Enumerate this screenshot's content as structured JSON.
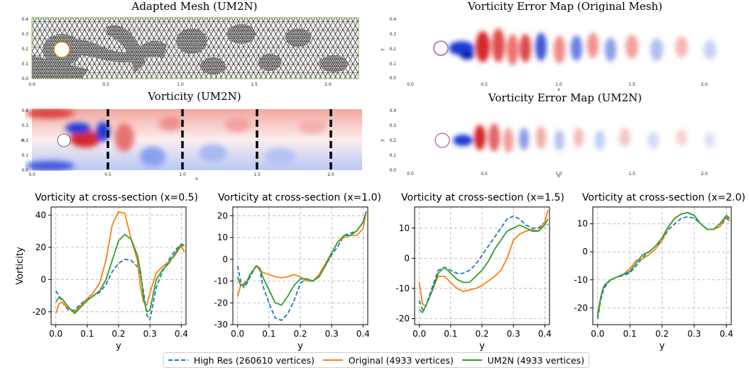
{
  "panels": {
    "mesh_title": "Adapted Mesh (UM2N)",
    "vort_title": "Vorticity (UM2N)",
    "err_orig_title": "Vorticity Error Map (Original Mesh)",
    "err_um2n_title": "Vorticity Error Map (UM2N)",
    "field_xlabel": "x",
    "field_ylabel": "y",
    "field_xticks": [
      "0.0",
      "0.5",
      "1.0",
      "1.5",
      "2.0"
    ],
    "field_yticks": [
      "0.0",
      "0.1",
      "0.2",
      "0.3",
      "0.4"
    ]
  },
  "colors": {
    "high_res": "#1f77b4",
    "original": "#ff7f0e",
    "um2n": "#2ca02c",
    "vort_pos": "#d62728",
    "vort_neg": "#1f3bd6"
  },
  "legend": {
    "high_res": "High Res (260610 vertices)",
    "original": "Original (4933 vertices)",
    "um2n": "UM2N (4933 vertices)"
  },
  "chart_data": [
    {
      "type": "line",
      "title": "Vorticity at cross-section (x=0.5)",
      "xlabel": "y",
      "ylabel": "Vorticity",
      "xlim": [
        -0.015,
        0.415
      ],
      "ylim": [
        -28,
        45
      ],
      "xticks": [
        "0.0",
        "0.1",
        "0.2",
        "0.3",
        "0.4"
      ],
      "yticks": [
        -20,
        0,
        20,
        40
      ],
      "grid": true,
      "series": [
        {
          "name": "High Res (260610 vertices)",
          "x": [
            0.0,
            0.01,
            0.02,
            0.04,
            0.06,
            0.08,
            0.1,
            0.12,
            0.14,
            0.16,
            0.18,
            0.2,
            0.22,
            0.24,
            0.26,
            0.27,
            0.28,
            0.29,
            0.3,
            0.32,
            0.34,
            0.36,
            0.38,
            0.4,
            0.41
          ],
          "y": [
            -7,
            -10,
            -14,
            -19,
            -19,
            -15,
            -12,
            -10,
            -8,
            -3,
            5,
            10,
            12.5,
            12,
            8,
            3,
            -8,
            -22,
            -25,
            -5,
            5,
            12,
            18,
            22,
            20
          ]
        },
        {
          "name": "Original (4933 vertices)",
          "x": [
            0.0,
            0.01,
            0.02,
            0.04,
            0.06,
            0.08,
            0.1,
            0.12,
            0.14,
            0.16,
            0.18,
            0.2,
            0.22,
            0.24,
            0.26,
            0.27,
            0.28,
            0.29,
            0.3,
            0.32,
            0.34,
            0.36,
            0.38,
            0.4,
            0.41
          ],
          "y": [
            -21,
            -15,
            -14,
            -18,
            -20,
            -16,
            -12,
            -8,
            -2,
            12,
            34,
            42,
            41,
            25,
            12,
            -5,
            -14,
            -16,
            -8,
            4,
            8,
            11,
            15,
            21,
            17
          ]
        },
        {
          "name": "UM2N (4933 vertices)",
          "x": [
            0.0,
            0.01,
            0.02,
            0.04,
            0.06,
            0.08,
            0.1,
            0.12,
            0.14,
            0.16,
            0.18,
            0.2,
            0.22,
            0.24,
            0.26,
            0.27,
            0.28,
            0.29,
            0.3,
            0.32,
            0.34,
            0.36,
            0.38,
            0.4,
            0.41
          ],
          "y": [
            -14,
            -11,
            -12,
            -17,
            -21,
            -17,
            -13,
            -10,
            -7,
            0,
            12,
            24,
            28,
            25,
            15,
            5,
            -12,
            -20,
            -19,
            0,
            6,
            10,
            16,
            22,
            21
          ]
        }
      ]
    },
    {
      "type": "line",
      "title": "Vorticity at cross-section (x=1.0)",
      "xlabel": "y",
      "ylabel": "",
      "xlim": [
        -0.015,
        0.415
      ],
      "ylim": [
        -30,
        24
      ],
      "xticks": [
        "0.0",
        "0.1",
        "0.2",
        "0.3",
        "0.4"
      ],
      "yticks": [
        -30,
        -20,
        -10,
        0,
        10,
        20
      ],
      "grid": true,
      "series": [
        {
          "name": "High Res (260610 vertices)",
          "x": [
            0.0,
            0.01,
            0.02,
            0.03,
            0.04,
            0.06,
            0.07,
            0.08,
            0.1,
            0.12,
            0.14,
            0.16,
            0.18,
            0.2,
            0.22,
            0.24,
            0.26,
            0.28,
            0.3,
            0.32,
            0.34,
            0.36,
            0.38,
            0.4,
            0.41
          ],
          "y": [
            -3,
            -10,
            -13,
            -11,
            -8,
            -3,
            -4,
            -12,
            -20,
            -27,
            -28,
            -25,
            -19,
            -11,
            -9,
            -10,
            -8,
            -3,
            2,
            6,
            11,
            12,
            13,
            17,
            20
          ]
        },
        {
          "name": "Original (4933 vertices)",
          "x": [
            0.0,
            0.01,
            0.02,
            0.03,
            0.04,
            0.06,
            0.07,
            0.08,
            0.1,
            0.12,
            0.14,
            0.16,
            0.18,
            0.2,
            0.22,
            0.24,
            0.26,
            0.28,
            0.3,
            0.32,
            0.34,
            0.36,
            0.38,
            0.4,
            0.41
          ],
          "y": [
            -17,
            -12,
            -11,
            -10,
            -7,
            -3,
            -5,
            -6,
            -7,
            -8,
            -8.5,
            -8,
            -7,
            -8,
            -10,
            -10,
            -7,
            -2,
            3,
            8,
            10,
            11,
            11,
            14,
            22
          ]
        },
        {
          "name": "UM2N (4933 vertices)",
          "x": [
            0.0,
            0.01,
            0.02,
            0.03,
            0.04,
            0.06,
            0.07,
            0.08,
            0.1,
            0.12,
            0.14,
            0.16,
            0.18,
            0.2,
            0.22,
            0.24,
            0.26,
            0.28,
            0.3,
            0.32,
            0.34,
            0.36,
            0.38,
            0.4,
            0.41
          ],
          "y": [
            -8,
            -12,
            -12,
            -10,
            -7,
            -3,
            -4,
            -8,
            -14,
            -20,
            -21,
            -17,
            -12,
            -9,
            -9,
            -10,
            -8,
            -3,
            3,
            8,
            11,
            11,
            13,
            17,
            22
          ]
        }
      ]
    },
    {
      "type": "line",
      "title": "Vorticity at cross-section (x=1.5)",
      "xlabel": "y",
      "ylabel": "",
      "xlim": [
        -0.015,
        0.415
      ],
      "ylim": [
        -22,
        17
      ],
      "xticks": [
        "0.0",
        "0.1",
        "0.2",
        "0.3",
        "0.4"
      ],
      "yticks": [
        -20,
        -10,
        0,
        10
      ],
      "grid": true,
      "series": [
        {
          "name": "High Res (260610 vertices)",
          "x": [
            0.0,
            0.01,
            0.02,
            0.04,
            0.06,
            0.08,
            0.1,
            0.12,
            0.14,
            0.16,
            0.18,
            0.2,
            0.22,
            0.24,
            0.26,
            0.28,
            0.3,
            0.32,
            0.34,
            0.36,
            0.38,
            0.4,
            0.41
          ],
          "y": [
            -14,
            -17,
            -16,
            -10,
            -4,
            -3,
            -4,
            -5,
            -5,
            -4,
            -2,
            1,
            4,
            7,
            10,
            13,
            14,
            13,
            11,
            10,
            10,
            12,
            11
          ]
        },
        {
          "name": "Original (4933 vertices)",
          "x": [
            0.0,
            0.01,
            0.02,
            0.04,
            0.06,
            0.08,
            0.1,
            0.12,
            0.14,
            0.16,
            0.18,
            0.2,
            0.22,
            0.24,
            0.26,
            0.28,
            0.3,
            0.32,
            0.34,
            0.36,
            0.38,
            0.4,
            0.41
          ],
          "y": [
            -8,
            -15,
            -16,
            -11,
            -6,
            -6,
            -8,
            -10,
            -11,
            -10.5,
            -10,
            -9,
            -7.5,
            -6,
            -4,
            0,
            6,
            8,
            9,
            9.5,
            9,
            12,
            16
          ]
        },
        {
          "name": "UM2N (4933 vertices)",
          "x": [
            0.0,
            0.01,
            0.02,
            0.04,
            0.06,
            0.08,
            0.1,
            0.12,
            0.14,
            0.16,
            0.18,
            0.2,
            0.22,
            0.24,
            0.26,
            0.28,
            0.3,
            0.32,
            0.34,
            0.36,
            0.38,
            0.4,
            0.41
          ],
          "y": [
            -17,
            -18,
            -16,
            -11,
            -5,
            -3,
            -5,
            -7,
            -8,
            -8,
            -6,
            -4,
            -1,
            3,
            6,
            9,
            10,
            11,
            10,
            9,
            9,
            11,
            13
          ]
        }
      ]
    },
    {
      "type": "line",
      "title": "Vorticity at cross-section (x=2.0)",
      "xlabel": "y",
      "ylabel": "",
      "xlim": [
        -0.015,
        0.415
      ],
      "ylim": [
        -26,
        16
      ],
      "xticks": [
        "0.0",
        "0.1",
        "0.2",
        "0.3",
        "0.4"
      ],
      "yticks": [
        -20,
        -10,
        0,
        10
      ],
      "grid": true,
      "series": [
        {
          "name": "High Res (260610 vertices)",
          "x": [
            0.0,
            0.01,
            0.02,
            0.04,
            0.06,
            0.08,
            0.1,
            0.12,
            0.14,
            0.16,
            0.18,
            0.2,
            0.22,
            0.24,
            0.26,
            0.28,
            0.3,
            0.32,
            0.34,
            0.36,
            0.38,
            0.4,
            0.41
          ],
          "y": [
            -24,
            -17,
            -13,
            -10,
            -9,
            -8.5,
            -7.5,
            -5,
            -2,
            0,
            2,
            4,
            8,
            10,
            12,
            12.5,
            12,
            10,
            8,
            8,
            9,
            12,
            11
          ]
        },
        {
          "name": "Original (4933 vertices)",
          "x": [
            0.0,
            0.01,
            0.02,
            0.04,
            0.06,
            0.08,
            0.1,
            0.12,
            0.14,
            0.16,
            0.18,
            0.2,
            0.22,
            0.24,
            0.26,
            0.28,
            0.3,
            0.32,
            0.34,
            0.36,
            0.38,
            0.4,
            0.41
          ],
          "y": [
            -22,
            -16,
            -12,
            -10,
            -9,
            -8,
            -6,
            -3,
            -2.5,
            -1,
            1,
            4,
            9,
            12,
            13.5,
            14,
            13,
            10,
            8,
            8,
            9,
            13,
            11
          ]
        },
        {
          "name": "UM2N (4933 vertices)",
          "x": [
            0.0,
            0.01,
            0.02,
            0.04,
            0.06,
            0.08,
            0.1,
            0.12,
            0.14,
            0.16,
            0.18,
            0.2,
            0.22,
            0.24,
            0.26,
            0.28,
            0.3,
            0.32,
            0.34,
            0.36,
            0.38,
            0.4,
            0.41
          ],
          "y": [
            -23,
            -16,
            -12,
            -10,
            -9,
            -8,
            -7,
            -4,
            -1,
            0,
            2,
            5,
            9,
            12,
            13.5,
            14,
            13,
            10,
            8,
            8,
            10,
            13,
            12
          ]
        }
      ]
    }
  ]
}
